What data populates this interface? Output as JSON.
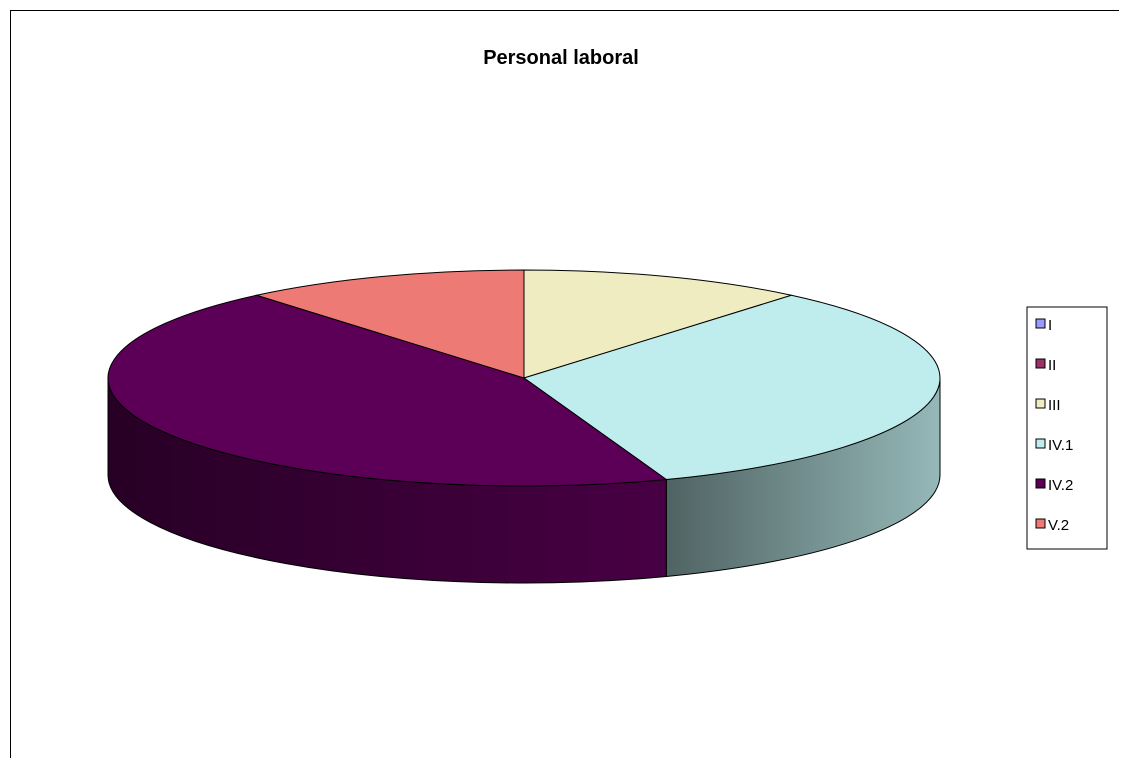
{
  "chart_data": {
    "type": "pie",
    "title": "Personal laboral",
    "labels": [
      "I",
      "II",
      "III",
      "IV.1",
      "IV.2",
      "V.2"
    ],
    "values": [
      0,
      0,
      1,
      3,
      4,
      1
    ],
    "colors": [
      "#9999ff",
      "#993366",
      "#ffffcc",
      "#ccffff",
      "#660066",
      "#ff8080"
    ],
    "display_colors": {
      "III": "#eeecc0",
      "IV.1": "#bfecec",
      "IV.2": "#5c0057",
      "V.2": "#ee7a76"
    },
    "style": "3d",
    "legend": "right"
  }
}
